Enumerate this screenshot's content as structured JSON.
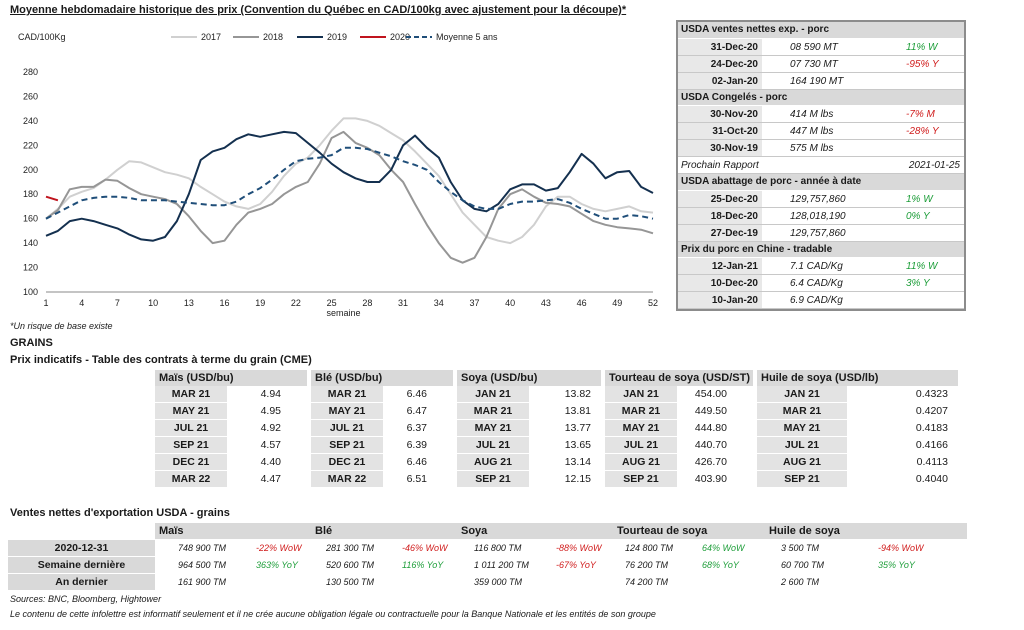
{
  "chart_title": "Moyenne hebdomadaire historique des prix (Convention du Québec en CAD/100kg avec ajustement pour la découpe)*",
  "chart_note": "*Un risque de base existe",
  "chart_data": {
    "type": "line",
    "ylabel": "CAD/100Kg",
    "xlabel": "semaine",
    "ylim": [
      100,
      280
    ],
    "yticks": [
      100,
      120,
      140,
      160,
      180,
      200,
      220,
      240,
      260,
      280
    ],
    "xlim": [
      1,
      52
    ],
    "xticks": [
      1,
      4,
      7,
      10,
      13,
      16,
      19,
      22,
      25,
      28,
      31,
      34,
      37,
      40,
      43,
      46,
      49,
      52
    ],
    "legend_position": "top",
    "series": [
      {
        "name": "2017",
        "color": "#d0d0d0",
        "dash": false,
        "x": [
          1,
          2,
          3,
          4,
          5,
          6,
          7,
          8,
          9,
          10,
          11,
          12,
          13,
          14,
          15,
          16,
          17,
          18,
          19,
          20,
          21,
          22,
          23,
          24,
          25,
          26,
          27,
          28,
          29,
          30,
          31,
          32,
          33,
          34,
          35,
          36,
          37,
          38,
          39,
          40,
          41,
          42,
          43,
          44,
          45,
          46,
          47,
          48,
          49,
          50,
          51,
          52
        ],
        "y": [
          160,
          168,
          178,
          182,
          185,
          192,
          200,
          207,
          206,
          202,
          198,
          196,
          193,
          186,
          180,
          174,
          170,
          168,
          172,
          182,
          195,
          205,
          210,
          220,
          232,
          242,
          242,
          240,
          236,
          230,
          224,
          215,
          205,
          195,
          180,
          165,
          155,
          145,
          142,
          140,
          145,
          155,
          170,
          178,
          178,
          172,
          168,
          166,
          168,
          170,
          166,
          165
        ]
      },
      {
        "name": "2018",
        "color": "#969696",
        "dash": false,
        "x": [
          1,
          2,
          3,
          4,
          5,
          6,
          7,
          8,
          9,
          10,
          11,
          12,
          13,
          14,
          15,
          16,
          17,
          18,
          19,
          20,
          21,
          22,
          23,
          24,
          25,
          26,
          27,
          28,
          29,
          30,
          31,
          32,
          33,
          34,
          35,
          36,
          37,
          38,
          39,
          40,
          41,
          42,
          43,
          44,
          45,
          46,
          47,
          48,
          49,
          50,
          51,
          52
        ],
        "y": [
          160,
          167,
          184,
          186,
          186,
          192,
          191,
          185,
          180,
          178,
          176,
          172,
          162,
          150,
          140,
          142,
          155,
          165,
          168,
          172,
          180,
          186,
          190,
          205,
          226,
          231,
          222,
          218,
          212,
          200,
          190,
          172,
          155,
          140,
          128,
          124,
          128,
          145,
          168,
          180,
          184,
          178,
          173,
          172,
          170,
          164,
          158,
          155,
          153,
          152,
          151,
          148
        ]
      },
      {
        "name": "2019",
        "color": "#14304f",
        "dash": false,
        "x": [
          1,
          2,
          3,
          4,
          5,
          6,
          7,
          8,
          9,
          10,
          11,
          12,
          13,
          14,
          15,
          16,
          17,
          18,
          19,
          20,
          21,
          22,
          23,
          24,
          25,
          26,
          27,
          28,
          29,
          30,
          31,
          32,
          33,
          34,
          35,
          36,
          37,
          38,
          39,
          40,
          41,
          42,
          43,
          44,
          45,
          46,
          47,
          48,
          49,
          50,
          51,
          52
        ],
        "y": [
          146,
          150,
          158,
          160,
          158,
          155,
          152,
          147,
          143,
          142,
          145,
          158,
          180,
          208,
          215,
          218,
          225,
          229,
          227,
          229,
          231,
          230,
          222,
          214,
          205,
          198,
          193,
          190,
          190,
          200,
          220,
          228,
          218,
          210,
          190,
          175,
          168,
          166,
          172,
          184,
          188,
          188,
          183,
          185,
          198,
          213,
          205,
          193,
          198,
          199,
          186,
          181
        ]
      },
      {
        "name": "2020",
        "color": "#c0141e",
        "dash": false,
        "x": [
          1,
          2
        ],
        "y": [
          178,
          175
        ]
      },
      {
        "name": "Moyenne 5 ans",
        "color": "#1f4e79",
        "dash": true,
        "x": [
          1,
          2,
          3,
          4,
          5,
          6,
          7,
          8,
          9,
          10,
          11,
          12,
          13,
          14,
          15,
          16,
          17,
          18,
          19,
          20,
          21,
          22,
          23,
          24,
          25,
          26,
          27,
          28,
          29,
          30,
          31,
          32,
          33,
          34,
          35,
          36,
          37,
          38,
          39,
          40,
          41,
          42,
          43,
          44,
          45,
          46,
          47,
          48,
          49,
          50,
          51,
          52
        ],
        "y": [
          160,
          165,
          170,
          175,
          177,
          178,
          178,
          177,
          175,
          175,
          175,
          174,
          173,
          172,
          171,
          171,
          174,
          180,
          185,
          192,
          200,
          207,
          209,
          210,
          212,
          218,
          218,
          217,
          214,
          211,
          207,
          204,
          200,
          190,
          182,
          175,
          170,
          168,
          168,
          172,
          174,
          174,
          175,
          176,
          173,
          168,
          164,
          160,
          160,
          163,
          162,
          160
        ]
      }
    ]
  },
  "usda": {
    "sections": [
      {
        "title": "USDA ventes nettes exp. - porc",
        "rows": [
          {
            "date": "31-Dec-20",
            "value": "08 590  MT",
            "change": "11% W",
            "trend": "pos"
          },
          {
            "date": "24-Dec-20",
            "value": "07 730  MT",
            "change": "-95% Y",
            "trend": "neg"
          },
          {
            "date": "02-Jan-20",
            "value": "164 190  MT",
            "change": "",
            "trend": ""
          }
        ]
      },
      {
        "title": "USDA Congelés - porc",
        "rows": [
          {
            "date": "30-Nov-20",
            "value": "414 M lbs",
            "change": "-7% M",
            "trend": "neg"
          },
          {
            "date": "31-Oct-20",
            "value": "447 M lbs",
            "change": "-28% Y",
            "trend": "neg"
          },
          {
            "date": "30-Nov-19",
            "value": "575 M lbs",
            "change": "",
            "trend": ""
          }
        ]
      }
    ],
    "next_report_label": "Prochain Rapport",
    "next_report_date": "2021-01-25",
    "sections2": [
      {
        "title": "USDA abattage de porc - année à date",
        "rows": [
          {
            "date": "25-Dec-20",
            "value": "129,757,860",
            "change": "1% W",
            "trend": "pos"
          },
          {
            "date": "18-Dec-20",
            "value": "128,018,190",
            "change": "0% Y",
            "trend": "pos"
          },
          {
            "date": "27-Dec-19",
            "value": "129,757,860",
            "change": "",
            "trend": ""
          }
        ]
      },
      {
        "title": "Prix du porc en Chine - tradable",
        "rows": [
          {
            "date": "12-Jan-21",
            "value": "7.1 CAD/Kg",
            "change": "11% W",
            "trend": "pos"
          },
          {
            "date": "10-Dec-20",
            "value": "6.4 CAD/Kg",
            "change": "3% Y",
            "trend": "pos"
          },
          {
            "date": "10-Jan-20",
            "value": "6.9 CAD/Kg",
            "change": "",
            "trend": ""
          }
        ]
      }
    ]
  },
  "grains": {
    "title": "GRAINS",
    "subtitle": "Prix indicatifs - Table des contrats à terme du grain (CME)",
    "futures": [
      {
        "name": "Maïs (USD/bu)",
        "rows": [
          [
            "MAR 21",
            "4.94"
          ],
          [
            "MAY 21",
            "4.95"
          ],
          [
            "JUL 21",
            "4.92"
          ],
          [
            "SEP 21",
            "4.57"
          ],
          [
            "DEC 21",
            "4.40"
          ],
          [
            "MAR 22",
            "4.47"
          ]
        ]
      },
      {
        "name": "Blé (USD/bu)",
        "rows": [
          [
            "MAR 21",
            "6.46"
          ],
          [
            "MAY 21",
            "6.47"
          ],
          [
            "JUL 21",
            "6.37"
          ],
          [
            "SEP 21",
            "6.39"
          ],
          [
            "DEC 21",
            "6.46"
          ],
          [
            "MAR 22",
            "6.51"
          ]
        ]
      },
      {
        "name": "Soya (USD/bu)",
        "rows": [
          [
            "JAN 21",
            "13.82"
          ],
          [
            "MAR 21",
            "13.81"
          ],
          [
            "MAY 21",
            "13.77"
          ],
          [
            "JUL 21",
            "13.65"
          ],
          [
            "AUG 21",
            "13.14"
          ],
          [
            "SEP 21",
            "12.15"
          ]
        ]
      },
      {
        "name": "Tourteau de soya (USD/ST)",
        "rows": [
          [
            "JAN 21",
            "454.00"
          ],
          [
            "MAR 21",
            "449.50"
          ],
          [
            "MAY 21",
            "444.80"
          ],
          [
            "JUL 21",
            "440.70"
          ],
          [
            "AUG 21",
            "426.70"
          ],
          [
            "SEP 21",
            "403.90"
          ]
        ]
      },
      {
        "name": "Huile de soya (USD/lb)",
        "rows": [
          [
            "JAN 21",
            "0.4323"
          ],
          [
            "MAR 21",
            "0.4207"
          ],
          [
            "MAY 21",
            "0.4183"
          ],
          [
            "JUL 21",
            "0.4166"
          ],
          [
            "AUG 21",
            "0.4113"
          ],
          [
            "SEP 21",
            "0.4040"
          ]
        ]
      }
    ],
    "exports_title": "Ventes nettes d'exportation USDA - grains",
    "exports_headers": [
      "Maïs",
      "Blé",
      "Soya",
      "Tourteau de soya",
      "Huile de soya"
    ],
    "exports_rows": [
      {
        "label": "2020-12-31",
        "cells": [
          [
            "748 900 TM",
            "-22% WoW",
            "neg"
          ],
          [
            "281 300 TM",
            "-46% WoW",
            "neg"
          ],
          [
            "116 800 TM",
            "-88% WoW",
            "neg"
          ],
          [
            "124 800 TM",
            "64% WoW",
            "pos"
          ],
          [
            "3 500 TM",
            "-94% WoW",
            "neg"
          ]
        ]
      },
      {
        "label": "Semaine dernière",
        "cells": [
          [
            "964 500 TM",
            "363% YoY",
            "pos"
          ],
          [
            "520 600 TM",
            "116% YoY",
            "pos"
          ],
          [
            "1 011 200 TM",
            "-67% YoY",
            "neg"
          ],
          [
            "76 200 TM",
            "68% YoY",
            "pos"
          ],
          [
            "60 700 TM",
            "35% YoY",
            "pos"
          ]
        ]
      },
      {
        "label": "An dernier",
        "cells": [
          [
            "161 900 TM",
            "",
            ""
          ],
          [
            "130 500 TM",
            "",
            ""
          ],
          [
            "359 000 TM",
            "",
            ""
          ],
          [
            "74 200 TM",
            "",
            ""
          ],
          [
            "2 600 TM",
            "",
            ""
          ]
        ]
      }
    ],
    "sources": "Sources: BNC, Bloomberg, Hightower",
    "disclaimer": "Le contenu de cette infolettre est informatif seulement et il ne crée aucune obligation légale ou contractuelle pour la Banque Nationale et les entités de son groupe"
  }
}
